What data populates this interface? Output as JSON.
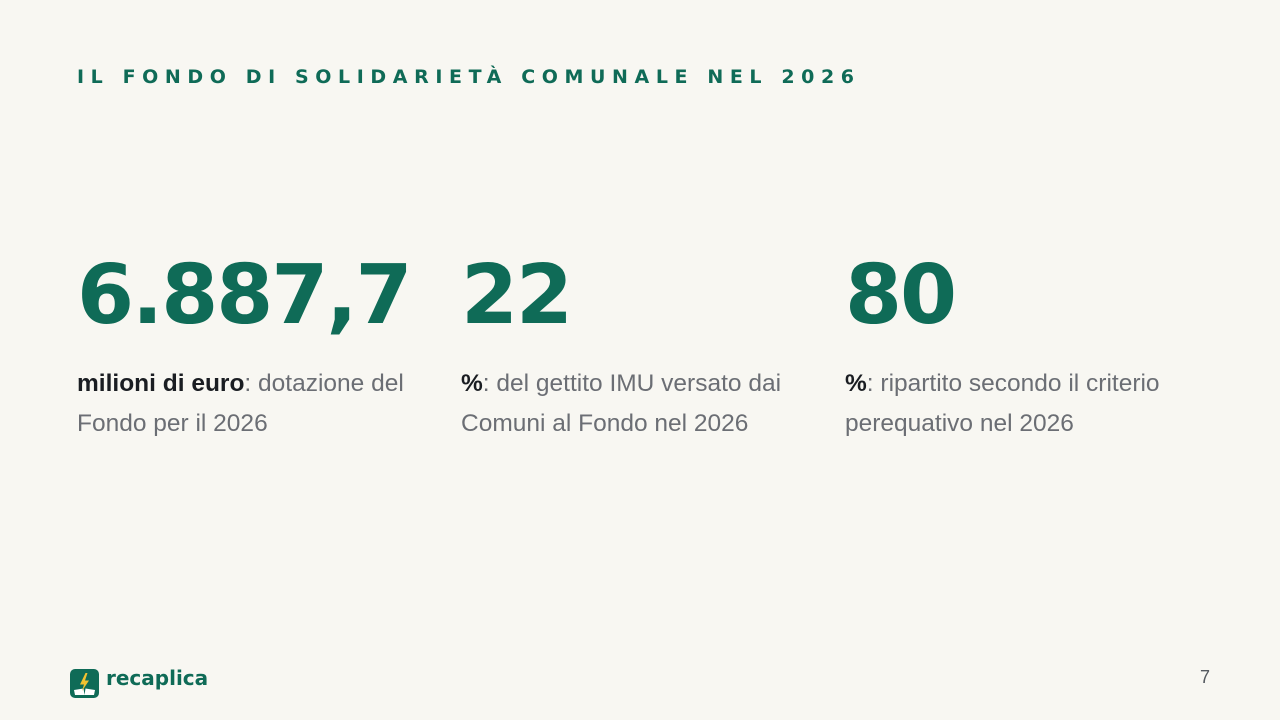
{
  "slide": {
    "kicker": "IL FONDO DI SOLIDARIETÀ COMUNALE NEL 2026",
    "page_number": "7"
  },
  "stats": [
    {
      "value": "6.887,7",
      "unit": "milioni di euro",
      "description": ": dotazione del Fondo per il 2026"
    },
    {
      "value": "22",
      "unit": "%",
      "description": ": del gettito IMU versato dai Comuni al Fondo nel 2026"
    },
    {
      "value": "80",
      "unit": "%",
      "description": ": ripartito secondo il criterio perequativo nel 2026"
    }
  ],
  "brand": {
    "name": "recaplica",
    "icon": "book-lightning-logo-icon"
  },
  "colors": {
    "background": "#f8f7f2",
    "accent": "#0f6b57",
    "text_muted": "#6b6e74",
    "text_strong": "#1a1d22",
    "logo_bolt": "#f2c230"
  }
}
